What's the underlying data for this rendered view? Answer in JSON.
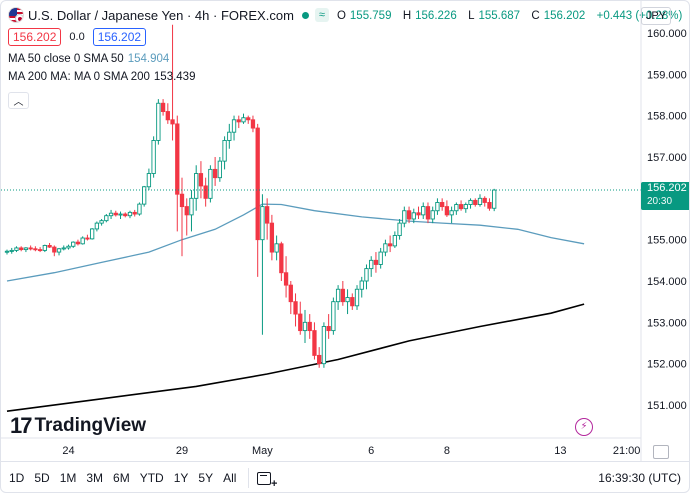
{
  "header": {
    "title": "U.S. Dollar / Japanese Yen · 4h · FOREX.com",
    "market_pill": "≈",
    "ohlc": [
      {
        "label": "O",
        "value": "155.759"
      },
      {
        "label": "H",
        "value": "156.226"
      },
      {
        "label": "L",
        "value": "155.687"
      },
      {
        "label": "C",
        "value": "156.202"
      }
    ],
    "change": "+0.443 (+0.28%)"
  },
  "trade": {
    "sell_price": "156.202",
    "spread": "0.0",
    "buy_price": "156.202"
  },
  "indicators": [
    {
      "name": "MA 50 close 0 SMA 50",
      "value": "154.904",
      "color": "#5b9cbd"
    },
    {
      "name": "MA 200 MA: MA 0 SMA 200",
      "value": "153.439",
      "color": "#000000"
    }
  ],
  "collapse_icon": "chevron-up-icon",
  "currency": "JPY",
  "last_price": {
    "price": "156.202",
    "countdown": "20:30",
    "color": "#089981"
  },
  "watermark": "TradingView",
  "bottom_bar": {
    "ranges": [
      "1D",
      "5D",
      "1M",
      "3M",
      "6M",
      "YTD",
      "1Y",
      "5Y",
      "All"
    ],
    "time": "16:39:30 (UTC)"
  },
  "colors": {
    "up": "#089981",
    "down": "#f23645",
    "ma50": "#5b9cbd",
    "ma200": "#000000"
  },
  "chart_data": {
    "type": "candlestick",
    "y_ticks": [
      151,
      152,
      153,
      154,
      155,
      156,
      157,
      158,
      159,
      160
    ],
    "y_tick_labels": [
      "151.000",
      "152.000",
      "153.000",
      "154.000",
      "155.000",
      "156.000",
      "157.000",
      "158.000",
      "159.000",
      "160.000"
    ],
    "ylim": [
      150.5,
      160.4
    ],
    "x_ticks": [
      {
        "label": "24",
        "index": 13
      },
      {
        "label": "29",
        "index": 37
      },
      {
        "label": "May",
        "index": 54
      },
      {
        "label": "6",
        "index": 77
      },
      {
        "label": "8",
        "index": 93
      },
      {
        "label": "13",
        "index": 117
      },
      {
        "label": "21:00",
        "index": 131
      }
    ],
    "candles": [
      [
        154.7,
        154.76,
        154.64,
        154.72
      ],
      [
        154.72,
        154.8,
        154.66,
        154.74
      ],
      [
        154.74,
        154.84,
        154.7,
        154.8
      ],
      [
        154.8,
        154.84,
        154.72,
        154.76
      ],
      [
        154.76,
        154.82,
        154.7,
        154.8
      ],
      [
        154.8,
        154.86,
        154.74,
        154.78
      ],
      [
        154.78,
        154.84,
        154.72,
        154.76
      ],
      [
        154.76,
        154.82,
        154.7,
        154.74
      ],
      [
        154.74,
        154.88,
        154.7,
        154.86
      ],
      [
        154.86,
        154.92,
        154.8,
        154.82
      ],
      [
        154.82,
        154.86,
        154.6,
        154.7
      ],
      [
        154.7,
        154.8,
        154.62,
        154.78
      ],
      [
        154.78,
        154.86,
        154.74,
        154.8
      ],
      [
        154.8,
        154.88,
        154.76,
        154.84
      ],
      [
        154.84,
        154.96,
        154.8,
        154.94
      ],
      [
        154.94,
        155.0,
        154.86,
        154.9
      ],
      [
        154.9,
        155.08,
        154.88,
        155.04
      ],
      [
        155.04,
        155.12,
        154.98,
        155.02
      ],
      [
        155.02,
        155.28,
        155.0,
        155.26
      ],
      [
        155.26,
        155.44,
        155.2,
        155.4
      ],
      [
        155.4,
        155.5,
        155.34,
        155.46
      ],
      [
        155.46,
        155.62,
        155.42,
        155.58
      ],
      [
        155.58,
        155.72,
        155.5,
        155.64
      ],
      [
        155.64,
        155.7,
        155.56,
        155.6
      ],
      [
        155.6,
        155.68,
        155.5,
        155.62
      ],
      [
        155.62,
        155.66,
        155.54,
        155.58
      ],
      [
        155.58,
        155.7,
        155.52,
        155.66
      ],
      [
        155.66,
        155.72,
        155.56,
        155.62
      ],
      [
        155.62,
        155.9,
        155.58,
        155.86
      ],
      [
        155.86,
        156.3,
        155.8,
        156.28
      ],
      [
        156.28,
        156.72,
        156.2,
        156.6
      ],
      [
        156.6,
        157.5,
        156.5,
        157.4
      ],
      [
        157.4,
        158.4,
        157.3,
        158.3
      ],
      [
        158.3,
        158.4,
        158.0,
        158.1
      ],
      [
        158.1,
        158.3,
        157.8,
        157.9
      ],
      [
        157.9,
        160.2,
        157.4,
        157.8
      ],
      [
        157.8,
        158.0,
        155.2,
        156.1
      ],
      [
        156.1,
        156.5,
        154.6,
        155.8
      ],
      [
        155.8,
        156.0,
        155.1,
        155.6
      ],
      [
        155.6,
        156.2,
        155.2,
        156.0
      ],
      [
        156.0,
        156.8,
        155.7,
        156.6
      ],
      [
        156.6,
        156.9,
        156.0,
        156.3
      ],
      [
        156.3,
        156.5,
        155.8,
        156.0
      ],
      [
        156.0,
        156.8,
        155.9,
        156.7
      ],
      [
        156.7,
        157.0,
        156.3,
        156.5
      ],
      [
        156.5,
        157.0,
        156.4,
        156.9
      ],
      [
        156.9,
        157.5,
        156.7,
        157.4
      ],
      [
        157.4,
        157.8,
        157.2,
        157.6
      ],
      [
        157.6,
        158.0,
        157.4,
        157.9
      ],
      [
        157.9,
        158.0,
        157.7,
        157.85
      ],
      [
        157.85,
        158.05,
        157.8,
        157.95
      ],
      [
        157.95,
        158.0,
        157.8,
        157.9
      ],
      [
        157.9,
        158.0,
        157.6,
        157.7
      ],
      [
        157.7,
        157.8,
        154.1,
        155.0
      ],
      [
        155.0,
        156.1,
        152.7,
        155.8
      ],
      [
        155.8,
        156.0,
        155.0,
        155.4
      ],
      [
        155.4,
        155.6,
        154.5,
        154.7
      ],
      [
        154.7,
        155.1,
        154.5,
        154.9
      ],
      [
        154.9,
        154.95,
        154.0,
        154.2
      ],
      [
        154.2,
        154.6,
        153.6,
        153.9
      ],
      [
        153.9,
        154.0,
        153.2,
        153.5
      ],
      [
        153.5,
        153.7,
        152.9,
        153.2
      ],
      [
        153.2,
        153.5,
        152.7,
        152.8
      ],
      [
        152.8,
        153.3,
        152.5,
        153.0
      ],
      [
        153.0,
        153.2,
        152.6,
        152.8
      ],
      [
        152.8,
        153.0,
        152.1,
        152.2
      ],
      [
        152.2,
        152.4,
        151.9,
        152.0
      ],
      [
        152.0,
        153.0,
        151.9,
        152.9
      ],
      [
        152.9,
        153.2,
        152.6,
        152.8
      ],
      [
        152.8,
        153.6,
        152.7,
        153.5
      ],
      [
        153.5,
        153.9,
        153.3,
        153.8
      ],
      [
        153.8,
        154.0,
        153.4,
        153.5
      ],
      [
        153.5,
        153.8,
        153.2,
        153.6
      ],
      [
        153.6,
        153.7,
        153.3,
        153.4
      ],
      [
        153.4,
        153.9,
        153.3,
        153.8
      ],
      [
        153.8,
        154.1,
        153.6,
        154.0
      ],
      [
        154.0,
        154.4,
        153.8,
        154.3
      ],
      [
        154.3,
        154.6,
        154.1,
        154.5
      ],
      [
        154.5,
        154.7,
        154.2,
        154.4
      ],
      [
        154.4,
        154.8,
        154.3,
        154.7
      ],
      [
        154.7,
        155.0,
        154.6,
        154.9
      ],
      [
        154.9,
        155.1,
        154.7,
        154.85
      ],
      [
        154.85,
        155.2,
        154.8,
        155.1
      ],
      [
        155.1,
        155.5,
        155.0,
        155.4
      ],
      [
        155.4,
        155.8,
        155.3,
        155.7
      ],
      [
        155.7,
        155.8,
        155.4,
        155.5
      ],
      [
        155.5,
        155.75,
        155.4,
        155.65
      ],
      [
        155.65,
        155.8,
        155.5,
        155.6
      ],
      [
        155.6,
        155.9,
        155.5,
        155.8
      ],
      [
        155.8,
        155.9,
        155.4,
        155.5
      ],
      [
        155.5,
        155.8,
        155.4,
        155.7
      ],
      [
        155.7,
        156.0,
        155.6,
        155.9
      ],
      [
        155.9,
        156.0,
        155.7,
        155.8
      ],
      [
        155.8,
        155.95,
        155.55,
        155.6
      ],
      [
        155.6,
        155.8,
        155.4,
        155.7
      ],
      [
        155.7,
        155.9,
        155.6,
        155.85
      ],
      [
        155.85,
        155.95,
        155.7,
        155.75
      ],
      [
        155.75,
        155.9,
        155.65,
        155.85
      ],
      [
        155.85,
        156.0,
        155.75,
        155.95
      ],
      [
        155.95,
        156.0,
        155.8,
        155.85
      ],
      [
        155.85,
        156.1,
        155.8,
        156.0
      ],
      [
        156.0,
        156.05,
        155.8,
        155.9
      ],
      [
        155.9,
        156.0,
        155.7,
        155.76
      ],
      [
        155.76,
        156.23,
        155.69,
        156.2
      ]
    ],
    "ma50": {
      "name": "MA 50 close 0 SMA 50",
      "points": [
        [
          0,
          154.0
        ],
        [
          10,
          154.2
        ],
        [
          20,
          154.45
        ],
        [
          30,
          154.7
        ],
        [
          37,
          155.0
        ],
        [
          44,
          155.25
        ],
        [
          50,
          155.6
        ],
        [
          54,
          155.86
        ],
        [
          58,
          155.85
        ],
        [
          65,
          155.7
        ],
        [
          75,
          155.55
        ],
        [
          85,
          155.45
        ],
        [
          92,
          155.4
        ],
        [
          100,
          155.35
        ],
        [
          108,
          155.25
        ],
        [
          115,
          155.05
        ],
        [
          122,
          154.9
        ]
      ]
    },
    "ma200": {
      "name": "MA 200 MA: MA 0 SMA 200",
      "points": [
        [
          0,
          150.85
        ],
        [
          20,
          151.15
        ],
        [
          40,
          151.45
        ],
        [
          55,
          151.75
        ],
        [
          70,
          152.1
        ],
        [
          85,
          152.55
        ],
        [
          100,
          152.9
        ],
        [
          115,
          153.22
        ],
        [
          122,
          153.44
        ]
      ]
    }
  }
}
